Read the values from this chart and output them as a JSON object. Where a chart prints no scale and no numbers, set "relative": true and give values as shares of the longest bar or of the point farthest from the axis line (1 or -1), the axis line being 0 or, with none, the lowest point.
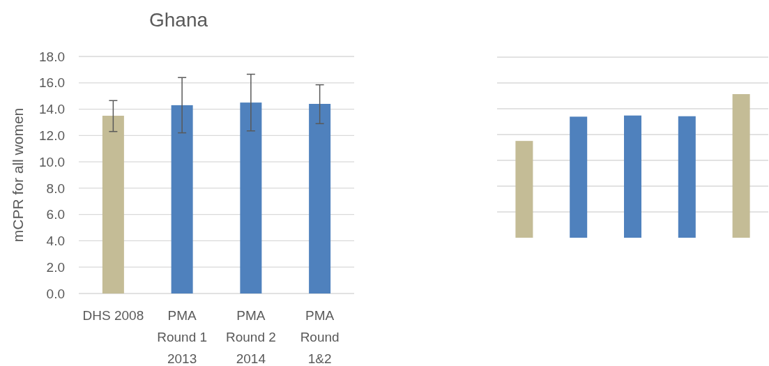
{
  "chart_data": [
    {
      "type": "bar",
      "title": "Ghana",
      "ylabel": "mCPR for all women",
      "categories": [
        "DHS 2008",
        "PMA Round 1 2013",
        "PMA Round 2 2014",
        "PMA Round 1&2"
      ],
      "values": [
        13.5,
        14.3,
        14.5,
        14.4
      ],
      "colors": [
        "#c4bc96",
        "#4f81bd",
        "#4f81bd",
        "#4f81bd"
      ],
      "errors": [
        [
          12.3,
          14.65
        ],
        [
          12.2,
          16.4
        ],
        [
          12.35,
          16.65
        ],
        [
          12.9,
          15.85
        ]
      ],
      "ylim": [
        0,
        18
      ],
      "yticks": [
        {
          "value": 0,
          "label": "0.0"
        },
        {
          "value": 2,
          "label": "2.0"
        },
        {
          "value": 4,
          "label": "4.0"
        },
        {
          "value": 6,
          "label": "6.0"
        },
        {
          "value": 8,
          "label": "8.0"
        },
        {
          "value": 10,
          "label": "10.0"
        },
        {
          "value": 12,
          "label": "12.0"
        },
        {
          "value": 14,
          "label": "14.0"
        },
        {
          "value": 16,
          "label": "16.0"
        },
        {
          "value": 18,
          "label": "18.0"
        }
      ],
      "grid": "y"
    },
    {
      "type": "bar",
      "relative": true,
      "categories": [
        null,
        null,
        null,
        null,
        null
      ],
      "values": [
        0.674,
        0.843,
        0.851,
        0.846,
        1
      ],
      "colors": [
        "#c4bc96",
        "#4f81bd",
        "#4f81bd",
        "#4f81bd",
        "#c4bc96"
      ],
      "grid": "y"
    }
  ]
}
